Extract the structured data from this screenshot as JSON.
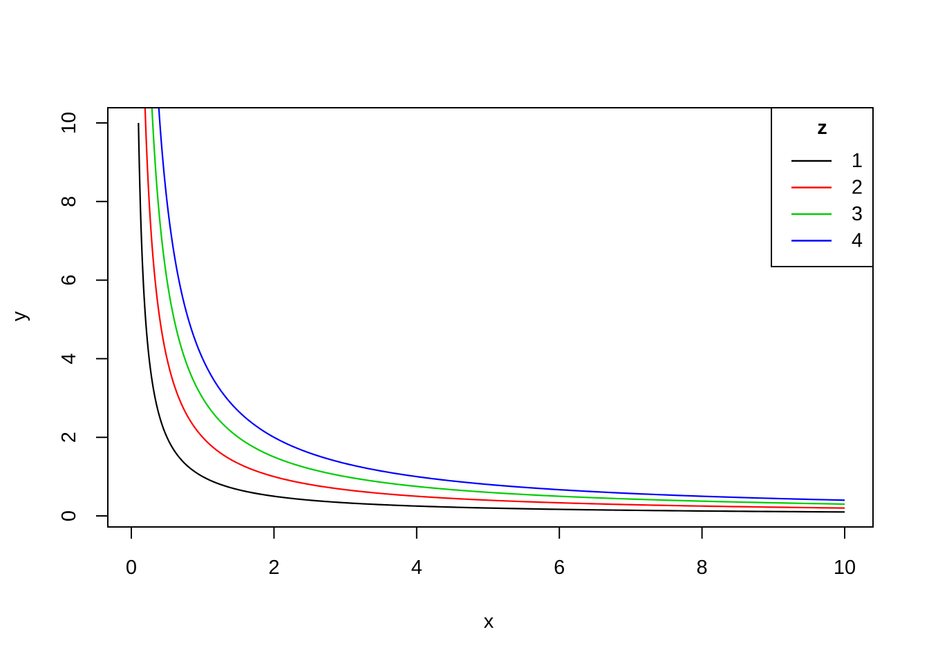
{
  "figure": {
    "background": "#ffffff"
  },
  "chart_data": {
    "type": "line",
    "title": "",
    "xlabel": "x",
    "ylabel": "y",
    "xlim": [
      0,
      10
    ],
    "ylim": [
      0,
      10
    ],
    "x_ticks": [
      0,
      2,
      4,
      6,
      8,
      10
    ],
    "y_ticks": [
      0,
      2,
      4,
      6,
      8,
      10
    ],
    "grid": false,
    "curve_rule": {
      "formula": "y = z / x",
      "x_start": 0.1,
      "x_end": 10,
      "clipped_to_plot_box": true
    },
    "series": [
      {
        "name": "1",
        "z": 1,
        "color": "#000000"
      },
      {
        "name": "2",
        "z": 2,
        "color": "#FF0000"
      },
      {
        "name": "3",
        "z": 3,
        "color": "#00CD00"
      },
      {
        "name": "4",
        "z": 4,
        "color": "#0000FF"
      }
    ],
    "sample_points": {
      "x": [
        0.1,
        0.2,
        0.5,
        1,
        2,
        4,
        6,
        8,
        10
      ],
      "y_by_series": {
        "1": [
          10,
          5,
          2,
          1,
          0.5,
          0.25,
          0.167,
          0.125,
          0.1
        ],
        "2": [
          20,
          10,
          4,
          2,
          1,
          0.5,
          0.333,
          0.25,
          0.2
        ],
        "3": [
          30,
          15,
          6,
          3,
          1.5,
          0.75,
          0.5,
          0.375,
          0.3
        ],
        "4": [
          40,
          20,
          8,
          4,
          2,
          1,
          0.667,
          0.5,
          0.4
        ]
      }
    },
    "legend": {
      "title": "z",
      "position": "topright",
      "entries": [
        {
          "label": "1",
          "color": "#000000"
        },
        {
          "label": "2",
          "color": "#FF0000"
        },
        {
          "label": "3",
          "color": "#00CD00"
        },
        {
          "label": "4",
          "color": "#0000FF"
        }
      ]
    }
  }
}
